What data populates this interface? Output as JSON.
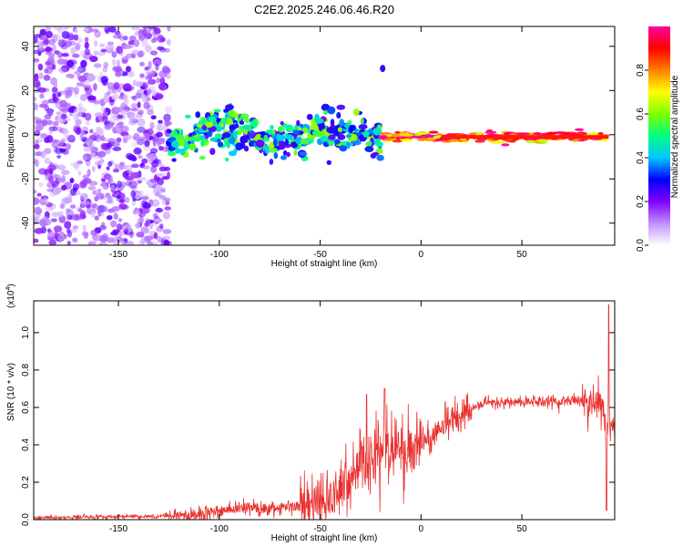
{
  "title": "C2E2.2025.246.06.46.R20",
  "colors": {
    "snr_line": "#e8302e",
    "spectrogram_noise": "#8a3ce0",
    "axis": "#000000"
  },
  "chart_data": [
    {
      "type": "heatmap",
      "title": "C2E2.2025.246.06.46.R20",
      "xlabel": "Height of straight line (km)",
      "ylabel": "Frequency (Hz)",
      "xlim": [
        -192,
        96
      ],
      "ylim": [
        -50,
        49
      ],
      "xticks": [
        -150,
        -100,
        -50,
        0,
        50
      ],
      "yticks": [
        -40,
        -20,
        0,
        20,
        40
      ],
      "grid": false,
      "colorbar": {
        "label": "Normalized spectral amplitude",
        "range": [
          0.0,
          1.0
        ],
        "ticks": [
          "0.0",
          "0.2",
          "0.4",
          "0.6",
          "0.8"
        ],
        "colormap": [
          "#ffffff",
          "#c090ff",
          "#8000ff",
          "#0000ff",
          "#00c8ff",
          "#00ff80",
          "#80ff00",
          "#ffff00",
          "#ff8000",
          "#ff0000",
          "#ff00a0"
        ]
      },
      "regions": [
        {
          "x": [
            -192,
            -125
          ],
          "freq": [
            -50,
            49
          ],
          "amplitude": 0.15,
          "description_value": "broadband noise"
        },
        {
          "x": [
            -125,
            -20
          ],
          "freq": [
            -12,
            10
          ],
          "amplitude": 0.35
        },
        {
          "x": [
            -20,
            93
          ],
          "freq": [
            -3,
            3
          ],
          "amplitude": 0.9
        }
      ],
      "features": [
        {
          "x": -19,
          "freq": 30,
          "amplitude": 0.25
        }
      ]
    },
    {
      "type": "line",
      "xlabel": "Height of straight line (km)",
      "ylabel": "SNR (10 * v/v)",
      "y_scale_note": "(x10",
      "y_scale_exp": "4",
      "xlim": [
        -192,
        96
      ],
      "ylim": [
        0,
        1.17
      ],
      "xticks": [
        -150,
        -100,
        -50,
        0,
        50
      ],
      "yticks": [
        "0.0",
        "0.2",
        "0.4",
        "0.6",
        "0.8",
        "1.0"
      ],
      "grid": false,
      "series": [
        {
          "color": "#e8302e",
          "envelope": {
            "x": [
              -192,
              -150,
              -125,
              -110,
              -100,
              -90,
              -75,
              -60,
              -50,
              -40,
              -30,
              -25,
              -20,
              -15,
              -10,
              -5,
              0,
              5,
              10,
              15,
              20,
              25,
              30,
              40,
              50,
              60,
              70,
              80,
              85,
              88,
              90,
              92,
              94,
              96
            ],
            "y": [
              0.01,
              0.015,
              0.02,
              0.03,
              0.05,
              0.06,
              0.06,
              0.07,
              0.1,
              0.18,
              0.25,
              0.3,
              0.35,
              0.38,
              0.4,
              0.42,
              0.42,
              0.44,
              0.47,
              0.52,
              0.57,
              0.6,
              0.62,
              0.63,
              0.63,
              0.63,
              0.63,
              0.64,
              0.65,
              0.65,
              0.6,
              0.5,
              0.5,
              0.5
            ]
          },
          "peaks": [
            {
              "x": -18,
              "y": 0.7
            },
            {
              "x": -27,
              "y": 0.67
            },
            {
              "x": 12,
              "y": 0.63
            },
            {
              "x": 93,
              "y": 1.15
            },
            {
              "x": 92,
              "y": 0.05
            }
          ]
        }
      ]
    }
  ]
}
